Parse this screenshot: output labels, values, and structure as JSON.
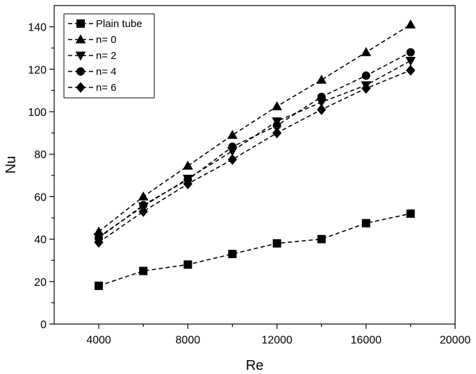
{
  "chart_data": {
    "type": "line",
    "title": "",
    "xlabel": "Re",
    "ylabel": "Nu",
    "xlim": [
      2000,
      20000
    ],
    "ylim": [
      0,
      150
    ],
    "x_ticks": [
      4000,
      8000,
      12000,
      16000,
      20000
    ],
    "y_ticks": [
      0,
      20,
      40,
      60,
      80,
      100,
      120,
      140
    ],
    "grid": false,
    "legend": "top-left",
    "x": [
      4000,
      6000,
      8000,
      10000,
      12000,
      14000,
      16000,
      18000
    ],
    "series": [
      {
        "name": "Plain tube",
        "marker": "square",
        "values": [
          18,
          25,
          28,
          33,
          38,
          40,
          47.5,
          52
        ]
      },
      {
        "name": "n= 0",
        "marker": "triangle-up",
        "values": [
          43.5,
          60,
          74.5,
          89,
          102.5,
          115,
          128,
          141
        ]
      },
      {
        "name": "n= 2",
        "marker": "triangle-down",
        "values": [
          41,
          55.5,
          68.5,
          81.5,
          95.5,
          104.5,
          112.5,
          124
        ]
      },
      {
        "name": "n= 4",
        "marker": "circle",
        "values": [
          40.5,
          56,
          68,
          83.5,
          93.5,
          107,
          117,
          128
        ]
      },
      {
        "name": "n= 6",
        "marker": "diamond",
        "values": [
          38.5,
          53,
          66,
          77.5,
          90,
          101,
          111,
          119.5
        ]
      }
    ]
  }
}
